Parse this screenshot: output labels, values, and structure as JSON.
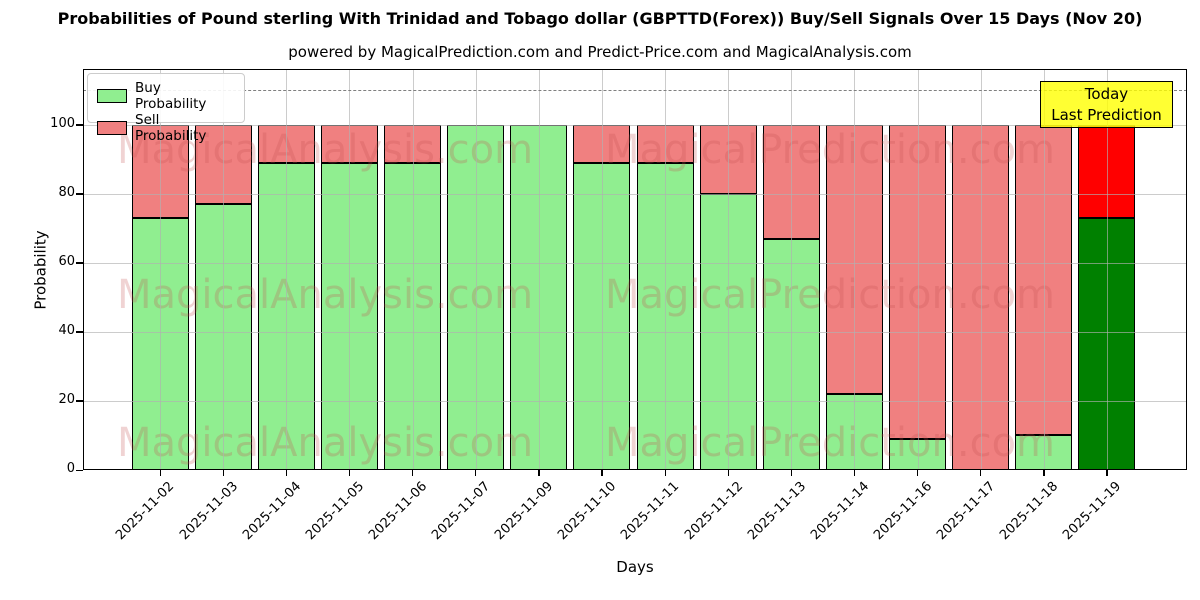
{
  "title": "Probabilities of Pound sterling With Trinidad and Tobago dollar (GBPTTD(Forex)) Buy/Sell Signals Over 15 Days (Nov 20)",
  "subtitle": "powered by MagicalPrediction.com and Predict-Price.com and MagicalAnalysis.com",
  "legend": {
    "buy_label": "Buy Probability",
    "sell_label": "Sell Probability"
  },
  "annotation": {
    "line1": "Today",
    "line2": "Last Prediction"
  },
  "axes": {
    "xlabel": "Days",
    "ylabel": "Probability",
    "yticks": [
      0,
      20,
      40,
      60,
      80,
      100
    ],
    "ylim": [
      0,
      116
    ],
    "dashed_line_y": 110
  },
  "watermarks": [
    "MagicalAnalysis.com",
    "MagicalPrediction.com"
  ],
  "colors": {
    "buy": "#90EE90",
    "sell": "#F08080",
    "today_buy": "#008000",
    "today_sell": "#FF0000",
    "annotation_bg": "#FFFF00",
    "grid": "#b0b0b0",
    "dashed": "#7f7f7f"
  },
  "chart_data": {
    "type": "bar",
    "stacked": true,
    "title": "Probabilities of Pound sterling With Trinidad and Tobago dollar (GBPTTD(Forex)) Buy/Sell Signals Over 15 Days (Nov 20)",
    "xlabel": "Days",
    "ylabel": "Probability",
    "ylim": [
      0,
      116
    ],
    "grid": true,
    "legend_position": "upper left",
    "categories": [
      "2025-11-02",
      "2025-11-03",
      "2025-11-04",
      "2025-11-05",
      "2025-11-06",
      "2025-11-07",
      "2025-11-09",
      "2025-11-10",
      "2025-11-11",
      "2025-11-12",
      "2025-11-13",
      "2025-11-14",
      "2025-11-16",
      "2025-11-17",
      "2025-11-18",
      "2025-11-19"
    ],
    "series": [
      {
        "name": "Buy Probability",
        "color": "#90EE90",
        "values": [
          73,
          77,
          89,
          89,
          89,
          100,
          100,
          89,
          89,
          80,
          67,
          22,
          9,
          0,
          10,
          73
        ]
      },
      {
        "name": "Sell Probability",
        "color": "#F08080",
        "values": [
          27,
          23,
          11,
          11,
          11,
          0,
          0,
          11,
          11,
          20,
          33,
          78,
          91,
          100,
          90,
          27
        ]
      }
    ],
    "highlight_last_bar": {
      "index": 15,
      "buy_color": "#008000",
      "sell_color": "#FF0000",
      "note": "Today / Last Prediction"
    },
    "threshold_dashed_line": 110
  }
}
